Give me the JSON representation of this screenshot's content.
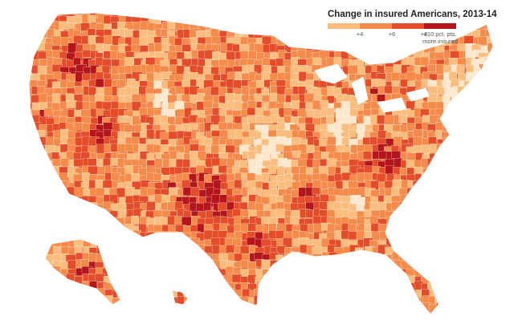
{
  "map": {
    "title": "Change in insured Americans, 2013-14",
    "legend": {
      "bins": [
        {
          "min": 0,
          "max": 4,
          "color": "#fde8cd"
        },
        {
          "min": 4,
          "max": 6,
          "color": "#fbbd7d"
        },
        {
          "min": 6,
          "max": 8,
          "color": "#f58b4b"
        },
        {
          "min": 8,
          "max": 10,
          "color": "#e44d2a"
        },
        {
          "min": 10,
          "max": null,
          "color": "#b4161c"
        }
      ],
      "labels": [
        "+4",
        "+6",
        "+8",
        "+10 pct. pts.",
        "more insured"
      ]
    },
    "base_color": "#e96a35"
  }
}
